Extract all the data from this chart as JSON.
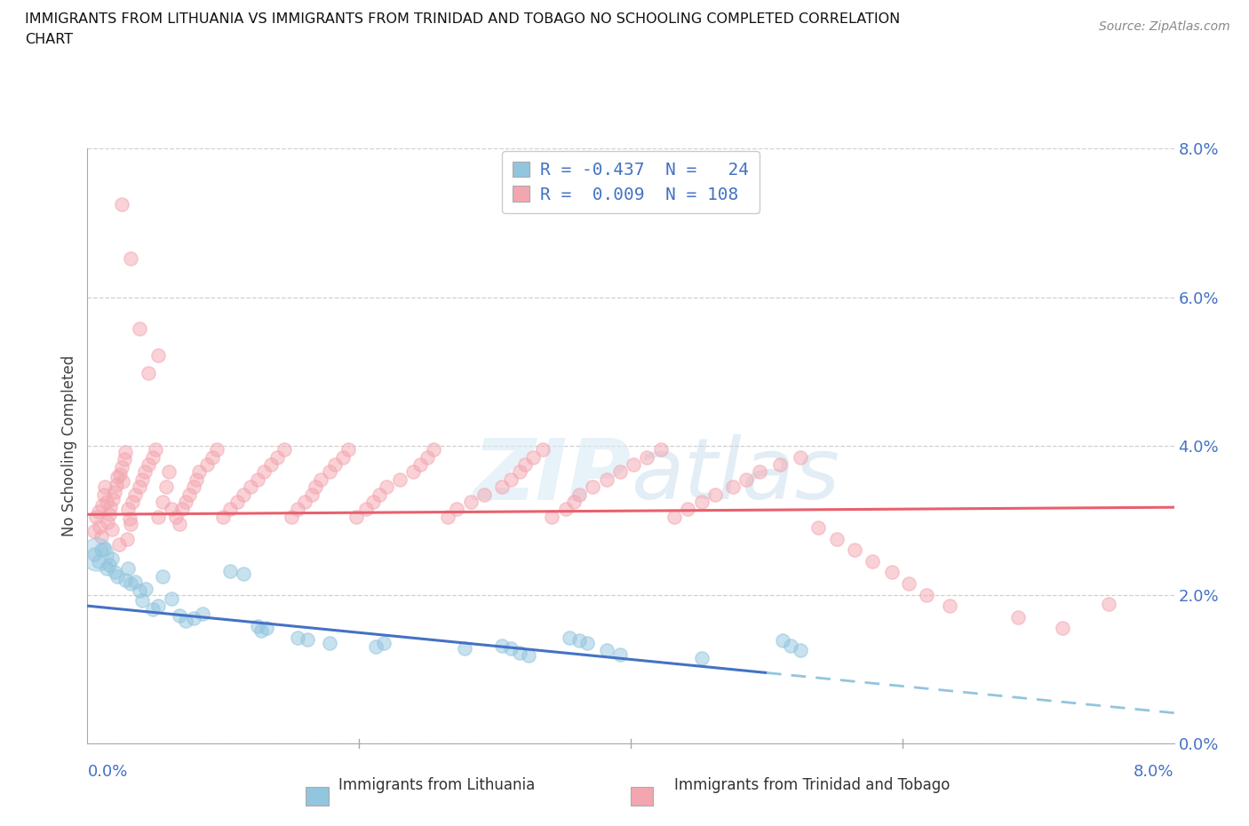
{
  "title_line1": "IMMIGRANTS FROM LITHUANIA VS IMMIGRANTS FROM TRINIDAD AND TOBAGO NO SCHOOLING COMPLETED CORRELATION",
  "title_line2": "CHART",
  "source": "Source: ZipAtlas.com",
  "ylabel": "No Schooling Completed",
  "color_lithuania": "#92C5DE",
  "color_tt": "#F4A6B0",
  "color_blue_line": "#4472C4",
  "color_pink_line": "#E8606D",
  "color_dashed": "#92C5DE",
  "x_lim": [
    0.0,
    8.0
  ],
  "y_lim": [
    0.0,
    8.0
  ],
  "y_ticks": [
    0.0,
    2.0,
    4.0,
    6.0,
    8.0
  ],
  "lithuania_x": [
    0.05,
    0.08,
    0.1,
    0.12,
    0.14,
    0.16,
    0.18,
    0.2,
    0.22,
    0.28,
    0.3,
    0.32,
    0.35,
    0.38,
    0.4,
    0.43,
    0.48,
    0.52,
    0.55,
    0.62,
    0.68,
    0.72,
    0.78,
    0.85,
    1.05,
    1.15,
    1.25,
    1.28,
    1.32,
    1.55,
    1.62,
    1.78,
    2.12,
    2.18,
    2.78,
    3.05,
    3.12,
    3.18,
    3.25,
    3.55,
    3.62,
    3.68,
    3.82,
    3.92,
    4.52,
    5.12,
    5.18,
    5.25
  ],
  "lithuania_y": [
    2.55,
    2.45,
    2.6,
    2.62,
    2.35,
    2.4,
    2.48,
    2.3,
    2.25,
    2.2,
    2.35,
    2.15,
    2.18,
    2.05,
    1.92,
    2.08,
    1.8,
    1.85,
    2.25,
    1.95,
    1.72,
    1.65,
    1.68,
    1.75,
    2.32,
    2.28,
    1.58,
    1.52,
    1.55,
    1.42,
    1.4,
    1.35,
    1.3,
    1.35,
    1.28,
    1.32,
    1.28,
    1.22,
    1.18,
    1.42,
    1.38,
    1.35,
    1.25,
    1.2,
    1.15,
    1.38,
    1.32,
    1.25
  ],
  "tt_x": [
    0.05,
    0.06,
    0.08,
    0.09,
    0.1,
    0.11,
    0.12,
    0.13,
    0.14,
    0.15,
    0.16,
    0.17,
    0.18,
    0.19,
    0.2,
    0.21,
    0.22,
    0.23,
    0.24,
    0.25,
    0.26,
    0.27,
    0.28,
    0.29,
    0.3,
    0.31,
    0.32,
    0.33,
    0.35,
    0.38,
    0.4,
    0.42,
    0.45,
    0.48,
    0.5,
    0.52,
    0.55,
    0.58,
    0.6,
    0.62,
    0.65,
    0.68,
    0.7,
    0.72,
    0.75,
    0.78,
    0.8,
    0.82,
    0.88,
    0.92,
    0.95,
    1.0,
    1.05,
    1.1,
    1.15,
    1.2,
    1.25,
    1.3,
    1.35,
    1.4,
    1.45,
    1.5,
    1.55,
    1.6,
    1.65,
    1.68,
    1.72,
    1.78,
    1.82,
    1.88,
    1.92,
    1.98,
    2.05,
    2.1,
    2.15,
    2.2,
    2.3,
    2.4,
    2.45,
    2.5,
    2.55,
    2.65,
    2.72,
    2.82,
    2.92,
    3.05,
    3.12,
    3.18,
    3.22,
    3.28,
    3.35,
    3.42,
    3.52,
    3.58,
    3.62,
    3.72,
    3.82,
    3.92,
    4.02,
    4.12,
    4.22,
    4.32,
    4.42,
    4.52,
    4.62,
    4.75,
    4.85,
    4.95,
    5.1,
    5.25
  ],
  "tt_y": [
    2.85,
    3.05,
    3.12,
    2.92,
    2.78,
    3.2,
    3.35,
    3.45,
    3.25,
    2.98,
    3.08,
    3.18,
    2.88,
    3.28,
    3.38,
    3.48,
    3.58,
    2.68,
    3.62,
    3.72,
    3.52,
    3.82,
    3.92,
    2.75,
    3.15,
    3.02,
    2.95,
    3.25,
    3.35,
    3.45,
    3.55,
    3.65,
    3.75,
    3.85,
    3.95,
    3.05,
    3.25,
    3.45,
    3.65,
    3.15,
    3.05,
    2.95,
    3.15,
    3.25,
    3.35,
    3.45,
    3.55,
    3.65,
    3.75,
    3.85,
    3.95,
    3.05,
    3.15,
    3.25,
    3.35,
    3.45,
    3.55,
    3.65,
    3.75,
    3.85,
    3.95,
    3.05,
    3.15,
    3.25,
    3.35,
    3.45,
    3.55,
    3.65,
    3.75,
    3.85,
    3.95,
    3.05,
    3.15,
    3.25,
    3.35,
    3.45,
    3.55,
    3.65,
    3.75,
    3.85,
    3.95,
    3.05,
    3.15,
    3.25,
    3.35,
    3.45,
    3.55,
    3.65,
    3.75,
    3.85,
    3.95,
    3.05,
    3.15,
    3.25,
    3.35,
    3.45,
    3.55,
    3.65,
    3.75,
    3.85,
    3.95,
    3.05,
    3.15,
    3.25,
    3.35,
    3.45,
    3.55,
    3.65,
    3.75,
    3.85
  ],
  "tt_outliers_x": [
    0.25,
    0.32,
    0.38,
    0.45,
    0.52,
    5.38,
    5.52,
    5.65,
    5.78,
    5.92,
    6.05,
    6.18,
    6.35,
    6.85,
    7.18,
    7.52
  ],
  "tt_outliers_y": [
    7.25,
    6.52,
    5.58,
    4.98,
    5.22,
    2.9,
    2.75,
    2.6,
    2.45,
    2.3,
    2.15,
    2.0,
    1.85,
    1.7,
    1.55,
    1.88
  ]
}
